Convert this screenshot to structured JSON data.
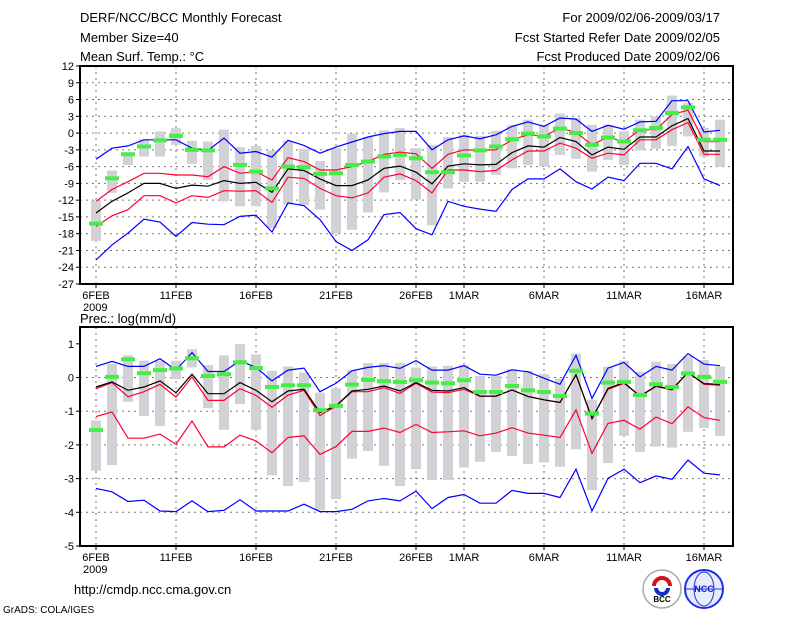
{
  "header": {
    "title": "DERF/NCC/BCC Monthly Forecast",
    "member_size": "Member Size=40",
    "variable_top": "Mean Surf. Temp.: °C",
    "period": "For 2009/02/06-2009/03/17",
    "started": "Fcst Started Refer Date 2009/02/05",
    "produced": "Fcst Produced Date 2009/02/06"
  },
  "footer": {
    "url": "http://cmdp.ncc.cma.gov.cn",
    "credit": "GrADS: COLA/IGES",
    "logo_bcc": "BCC",
    "logo_ncc": "NCC"
  },
  "colors": {
    "extreme": "#0000ff",
    "spread": "#ff0030",
    "mean": "#000000",
    "observed": "#44ee44",
    "range": "#d2d2d6"
  },
  "chart_data": [
    {
      "type": "line",
      "title": "Mean Surf. Temp.: °C",
      "xlabel": "",
      "ylabel": "°C",
      "x_start": "2009-02-06",
      "n_days": 40,
      "xticks": [
        {
          "day": 0,
          "label": "6FEB",
          "sub": "2009"
        },
        {
          "day": 5,
          "label": "11FEB"
        },
        {
          "day": 10,
          "label": "16FEB"
        },
        {
          "day": 15,
          "label": "21FEB"
        },
        {
          "day": 20,
          "label": "26FEB"
        },
        {
          "day": 23,
          "label": "1MAR"
        },
        {
          "day": 28,
          "label": "6MAR"
        },
        {
          "day": 33,
          "label": "11MAR"
        },
        {
          "day": 38,
          "label": "16MAR"
        }
      ],
      "yticks": [
        12,
        9,
        6,
        3,
        0,
        -3,
        -6,
        -9,
        -12,
        -15,
        -18,
        -21,
        -24,
        -27
      ],
      "ytick_labels": [
        "12",
        "9",
        "6",
        "3",
        "0",
        "-3",
        "-6",
        "-9",
        "-12",
        "-15",
        "-18",
        "-21",
        "-24",
        "-27"
      ],
      "ylim": [
        -27,
        12
      ],
      "grid": true,
      "series": [
        {
          "name": "max",
          "color": "#0000ff",
          "values": [
            -4.7,
            -2.7,
            -2.3,
            -1.2,
            -1.2,
            -1.2,
            -2.7,
            -3.1,
            -0.9,
            -3.6,
            -3.3,
            -4.3,
            -1.3,
            -2.2,
            -3.6,
            -2.5,
            -1.6,
            -0.7,
            -0.1,
            0.3,
            0.3,
            -3,
            -1.2,
            -0.5,
            -1,
            -0.3,
            1.2,
            2,
            1.2,
            2.7,
            2.5,
            0.3,
            1.4,
            0.7,
            2,
            2.1,
            5.8,
            5.8,
            0.2,
            0.5
          ]
        },
        {
          "name": "mean+sd",
          "color": "#ff0030",
          "values": [
            -12.2,
            -10.1,
            -8.7,
            -7.2,
            -7.2,
            -7.5,
            -7.5,
            -7.8,
            -6,
            -7.2,
            -6.9,
            -8.4,
            -4.4,
            -5.1,
            -6.6,
            -6.6,
            -6,
            -5.1,
            -3.8,
            -3.4,
            -3.7,
            -6.3,
            -3.8,
            -3,
            -3.1,
            -3,
            -1.2,
            -0.3,
            -0.6,
            0.9,
            0.1,
            -2.1,
            -0.7,
            -1.6,
            0.6,
            0.6,
            3.3,
            4.1,
            -1.5,
            -1.5
          ]
        },
        {
          "name": "mean",
          "color": "#000000",
          "values": [
            -14.3,
            -12.2,
            -10.7,
            -9,
            -9,
            -9.9,
            -9.3,
            -9.5,
            -8.5,
            -9,
            -8.8,
            -10.6,
            -6.4,
            -6.7,
            -8.2,
            -9.4,
            -9.4,
            -8.4,
            -6.3,
            -5.9,
            -7,
            -9.1,
            -5.9,
            -5.5,
            -5.7,
            -5.6,
            -3.5,
            -2.3,
            -2.5,
            -0.8,
            -1.5,
            -3.9,
            -2.5,
            -2.9,
            -0.7,
            -0.7,
            1.3,
            2.6,
            -3.2,
            -3.2
          ]
        },
        {
          "name": "mean-sd",
          "color": "#ff0030",
          "values": [
            -16.7,
            -14.8,
            -13.7,
            -11.2,
            -11.2,
            -12.5,
            -11.2,
            -11.5,
            -10.3,
            -10.4,
            -10.3,
            -12.4,
            -7.9,
            -8.1,
            -9.9,
            -11.2,
            -11.6,
            -10.7,
            -7.9,
            -7.3,
            -8.5,
            -10.7,
            -6.6,
            -6.6,
            -6.9,
            -6.7,
            -4.8,
            -3.2,
            -3.2,
            -1.8,
            -2.7,
            -4.5,
            -3.6,
            -3.9,
            -1.2,
            -1.2,
            0.6,
            1.9,
            -3.8,
            -3.8
          ]
        },
        {
          "name": "min",
          "color": "#0000ff",
          "values": [
            -22.7,
            -20,
            -17.9,
            -15.4,
            -15.9,
            -18.5,
            -16,
            -16.3,
            -16.4,
            -14.9,
            -14.7,
            -17.7,
            -12.5,
            -13,
            -15.5,
            -19.4,
            -21,
            -19.1,
            -14.6,
            -14.2,
            -17.1,
            -18.2,
            -12.2,
            -13.1,
            -13.6,
            -14,
            -10.1,
            -8.2,
            -8.2,
            -6.4,
            -8.7,
            -10,
            -7.9,
            -8.5,
            -5.4,
            -5.4,
            -6.4,
            -2.4,
            -8.2,
            -9.4
          ]
        }
      ],
      "observed": [
        -16.2,
        -8.1,
        -3.8,
        -2.4,
        -1.3,
        -0.5,
        -3,
        -3.1,
        null,
        -5.7,
        -6.9,
        -9.9,
        -6,
        -6.1,
        -7.3,
        -7.2,
        -5.7,
        -5.1,
        -4.2,
        -3.9,
        -4.5,
        -7,
        -7,
        -4,
        -3.1,
        -2.4,
        -1.1,
        -0.1,
        -0.6,
        0.8,
        0,
        -2.1,
        -0.8,
        -1.5,
        0.5,
        0.9,
        3.6,
        4.6,
        -1.2,
        -1.2
      ],
      "range_high": [
        -12.1,
        -6.7,
        -3.4,
        -1.1,
        0.3,
        0.9,
        -1.4,
        -1.5,
        0.6,
        -2.5,
        -2.3,
        -3.1,
        -1.4,
        -2.8,
        -5,
        -2.7,
        -0.1,
        -0.7,
        0.5,
        0.9,
        -2.7,
        -2.1,
        -0.7,
        -0.3,
        -0.5,
        0.4,
        1.4,
        2.4,
        1.5,
        3.5,
        2.7,
        1.5,
        1.5,
        0.3,
        2.4,
        3,
        6.7,
        5.4,
        0.9,
        2.4
      ],
      "range_low": [
        -19.3,
        -10.7,
        -5.7,
        -4.2,
        -4.2,
        -2.1,
        -5.5,
        -8.4,
        -12.2,
        -13.1,
        -13.1,
        -17,
        -12.8,
        -12.9,
        -13.7,
        -17.9,
        -17.3,
        -14.2,
        -10.6,
        -8.4,
        -11.9,
        -16.5,
        -9.9,
        -8.7,
        -8.7,
        -7.5,
        -6.3,
        -5.7,
        -6,
        -3.9,
        -4.6,
        -6.9,
        -4.8,
        -5.7,
        -3.1,
        -2.8,
        -2.3,
        -0.6,
        -4.2,
        -6
      ]
    },
    {
      "type": "line",
      "title": "Prec.: log(mm/d)",
      "xlabel": "",
      "ylabel": "log(mm/d)",
      "x_start": "2009-02-06",
      "n_days": 40,
      "xticks": [
        {
          "day": 0,
          "label": "6FEB",
          "sub": "2009"
        },
        {
          "day": 5,
          "label": "11FEB"
        },
        {
          "day": 10,
          "label": "16FEB"
        },
        {
          "day": 15,
          "label": "21FEB"
        },
        {
          "day": 20,
          "label": "26FEB"
        },
        {
          "day": 23,
          "label": "1MAR"
        },
        {
          "day": 28,
          "label": "6MAR"
        },
        {
          "day": 33,
          "label": "11MAR"
        },
        {
          "day": 38,
          "label": "16MAR"
        }
      ],
      "yticks": [
        1,
        0,
        -1,
        -2,
        -3,
        -4,
        -5
      ],
      "ytick_labels": [
        "1",
        "0",
        "-1",
        "-2",
        "-3",
        "-4",
        "-5"
      ],
      "ylim": [
        -5,
        1.5
      ],
      "grid": true,
      "series": [
        {
          "name": "max",
          "color": "#0000ff",
          "values": [
            0.33,
            0.48,
            0.33,
            0.33,
            0.56,
            0.22,
            0.74,
            0.18,
            0.18,
            0.5,
            0.3,
            -0.1,
            0.22,
            0.28,
            -0.42,
            -0.17,
            0.2,
            0.3,
            0.35,
            0.27,
            0.5,
            0.22,
            0.22,
            0.35,
            0.1,
            0.07,
            0.23,
            0.17,
            -0.02,
            -0.2,
            0.66,
            -0.62,
            0.28,
            0.45,
            0.02,
            0.33,
            0.22,
            0.71,
            0.4,
            0.35
          ]
        },
        {
          "name": "mean+sd",
          "color": "#ff0030",
          "values": [
            -0.33,
            -0.15,
            -0.57,
            -0.42,
            -0.2,
            -0.58,
            0.02,
            -0.68,
            -0.68,
            -0.33,
            -0.53,
            -0.88,
            -0.52,
            -0.38,
            -1.13,
            -0.85,
            -0.42,
            -0.42,
            -0.3,
            -0.47,
            -0.17,
            -0.43,
            -0.45,
            -0.35,
            -0.55,
            -0.55,
            -0.37,
            -0.56,
            -0.66,
            -0.74,
            0.08,
            -1.22,
            -0.35,
            -0.17,
            -0.55,
            -0.27,
            -0.37,
            0.15,
            -0.2,
            -0.23
          ]
        },
        {
          "name": "mean",
          "color": "#000000",
          "values": [
            -0.28,
            -0.13,
            -0.38,
            -0.28,
            -0.1,
            -0.45,
            0.1,
            -0.48,
            -0.48,
            -0.15,
            -0.38,
            -0.72,
            -0.4,
            -0.35,
            -1.04,
            -0.84,
            -0.4,
            -0.35,
            -0.25,
            -0.4,
            -0.15,
            -0.38,
            -0.4,
            -0.3,
            -0.55,
            -0.55,
            -0.37,
            -0.56,
            -0.66,
            -0.74,
            0.08,
            -1.22,
            -0.32,
            -0.15,
            -0.55,
            -0.25,
            -0.35,
            0.15,
            -0.18,
            -0.2
          ]
        },
        {
          "name": "mean-sd",
          "color": "#ff0030",
          "values": [
            -1.16,
            -1.02,
            -1.8,
            -1.8,
            -1.68,
            -1.98,
            -1.29,
            -2.06,
            -2.06,
            -1.71,
            -1.88,
            -2.23,
            -1.78,
            -1.73,
            -2.28,
            -2.05,
            -1.6,
            -1.6,
            -1.5,
            -1.63,
            -1.39,
            -1.63,
            -1.61,
            -1.58,
            -1.73,
            -1.65,
            -1.49,
            -1.65,
            -1.71,
            -1.78,
            -0.96,
            -2.25,
            -1.36,
            -1.27,
            -1.53,
            -1.17,
            -1.37,
            -0.87,
            -1.19,
            -1.27
          ]
        },
        {
          "name": "min",
          "color": "#0000ff",
          "values": [
            -3.29,
            -3.39,
            -3.68,
            -3.64,
            -3.96,
            -3.98,
            -3.66,
            -3.98,
            -3.94,
            -3.63,
            -3.96,
            -3.96,
            -3.96,
            -3.76,
            -3.98,
            -3.98,
            -3.91,
            -3.66,
            -3.59,
            -3.66,
            -3.37,
            -3.89,
            -3.56,
            -3.47,
            -3.73,
            -3.73,
            -3.35,
            -3.44,
            -3.44,
            -3.56,
            -2.72,
            -3.96,
            -2.99,
            -2.72,
            -3.12,
            -2.92,
            -3.02,
            -2.45,
            -2.84,
            -2.89
          ]
        }
      ],
      "observed": [
        -1.56,
        0.02,
        0.54,
        0.13,
        0.22,
        0.27,
        0.57,
        0.05,
        0.1,
        0.45,
        0.28,
        -0.28,
        -0.23,
        -0.23,
        -0.97,
        -0.84,
        -0.21,
        -0.07,
        -0.11,
        -0.13,
        -0.08,
        -0.15,
        -0.17,
        -0.08,
        -0.43,
        -0.43,
        -0.25,
        -0.38,
        -0.43,
        -0.55,
        0.2,
        -1.07,
        -0.15,
        -0.13,
        -0.52,
        -0.2,
        -0.28,
        0.12,
        0.02,
        -0.13
      ],
      "range_high": [
        -1.27,
        0.4,
        0.66,
        0.5,
        0.5,
        0.5,
        0.84,
        0.37,
        0.66,
        0.99,
        0.69,
        0.2,
        0.33,
        0.15,
        -0.45,
        -0.32,
        0.23,
        0.43,
        0.43,
        0.43,
        0.3,
        0.33,
        0.35,
        0.37,
        0.05,
        0.05,
        0.25,
        0.2,
        0.1,
        -0.03,
        0.71,
        -0.66,
        0.32,
        0.5,
        0.17,
        0.47,
        0.4,
        0.64,
        0.52,
        0.33
      ],
      "range_low": [
        -2.77,
        -2.6,
        -0.72,
        -1.14,
        -1.44,
        -0.05,
        0.3,
        -0.91,
        -1.55,
        -0.79,
        -1.55,
        -2.9,
        -3.22,
        -3.1,
        -3.94,
        -3.61,
        -2.41,
        -2.18,
        -2.62,
        -3.22,
        -2.72,
        -3.04,
        -3.04,
        -2.67,
        -2.5,
        -2.21,
        -2.33,
        -2.57,
        -2.52,
        -2.65,
        -2.13,
        -3.34,
        -2.54,
        -1.73,
        -2.21,
        -2.05,
        -2.08,
        -1.61,
        -1.5,
        -1.73
      ]
    }
  ]
}
